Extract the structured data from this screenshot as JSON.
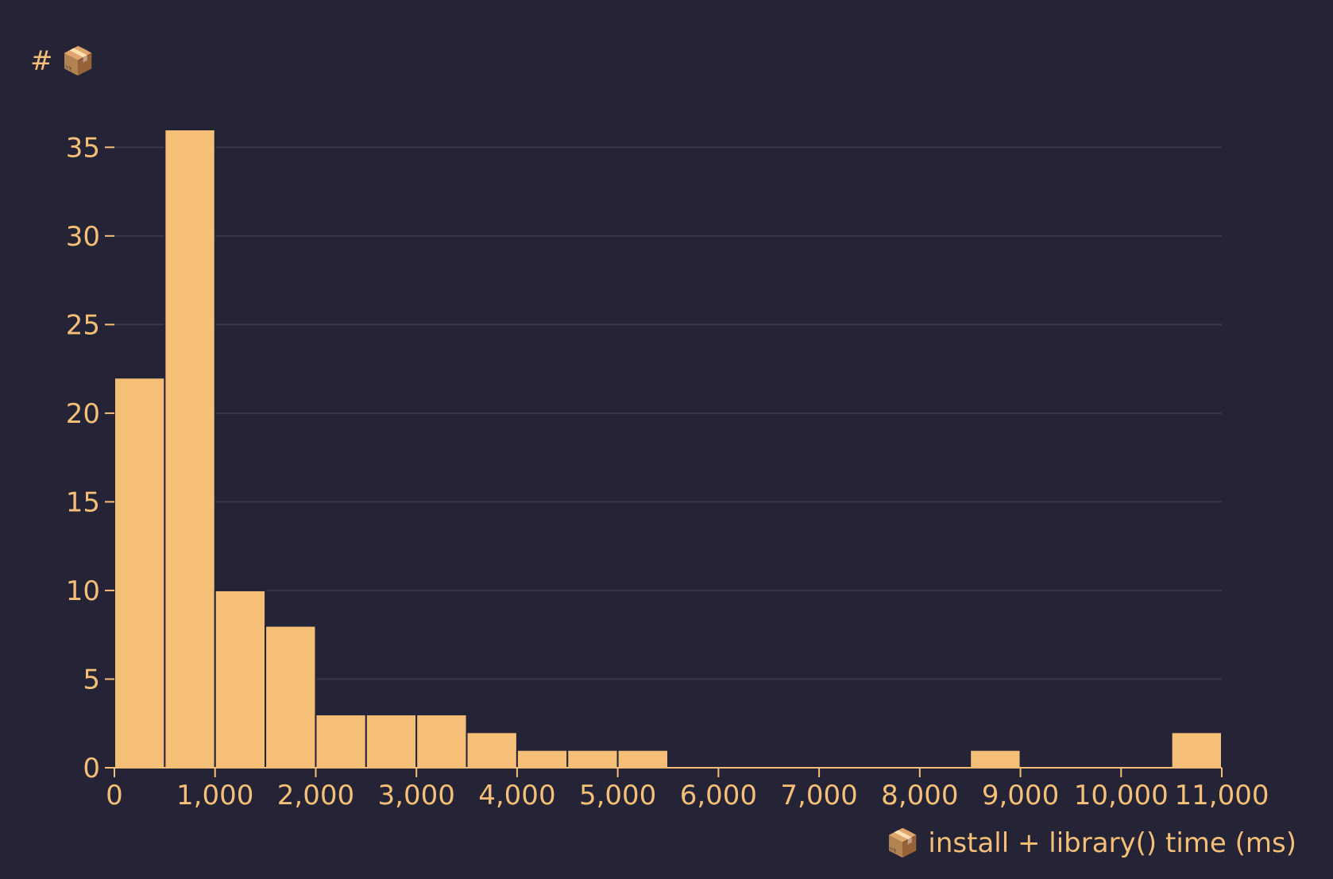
{
  "chart_data": {
    "type": "bar",
    "title": "",
    "ylabel": "# 📦",
    "xlabel": "📦 install + library() time (ms)",
    "bin_width": 500,
    "bins": [
      {
        "start": 0,
        "end": 500,
        "count": 22
      },
      {
        "start": 500,
        "end": 1000,
        "count": 36
      },
      {
        "start": 1000,
        "end": 1500,
        "count": 10
      },
      {
        "start": 1500,
        "end": 2000,
        "count": 8
      },
      {
        "start": 2000,
        "end": 2500,
        "count": 3
      },
      {
        "start": 2500,
        "end": 3000,
        "count": 3
      },
      {
        "start": 3000,
        "end": 3500,
        "count": 3
      },
      {
        "start": 3500,
        "end": 4000,
        "count": 2
      },
      {
        "start": 4000,
        "end": 4500,
        "count": 1
      },
      {
        "start": 4500,
        "end": 5000,
        "count": 1
      },
      {
        "start": 5000,
        "end": 5500,
        "count": 1
      },
      {
        "start": 8500,
        "end": 9000,
        "count": 1
      },
      {
        "start": 10500,
        "end": 11000,
        "count": 2
      }
    ],
    "xlim": [
      0,
      11000
    ],
    "ylim": [
      0,
      36
    ],
    "x_ticks": [
      0,
      1000,
      2000,
      3000,
      4000,
      5000,
      6000,
      7000,
      8000,
      9000,
      10000,
      11000
    ],
    "x_tick_labels": [
      "0",
      "1,000",
      "2,000",
      "3,000",
      "4,000",
      "5,000",
      "6,000",
      "7,000",
      "8,000",
      "9,000",
      "10,000",
      "11,000"
    ],
    "y_ticks": [
      0,
      5,
      10,
      15,
      20,
      25,
      30,
      35
    ],
    "y_tick_labels": [
      "0",
      "5",
      "10",
      "15",
      "20",
      "25",
      "30",
      "35"
    ],
    "grid": "horizontal",
    "colors": {
      "background": "#252336",
      "bar": "#f5bf78",
      "text": "#f5bf78",
      "grid": "#3a3848"
    }
  }
}
